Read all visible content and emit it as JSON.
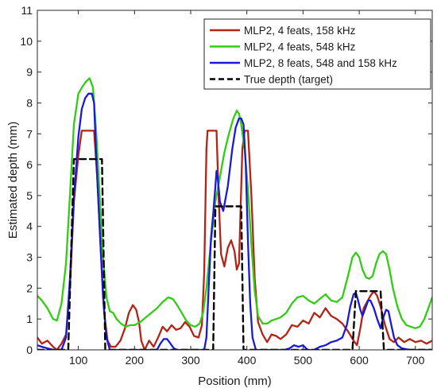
{
  "chart_data": {
    "type": "line",
    "xlabel": "Position (mm)",
    "ylabel": "Estimated depth (mm)",
    "xlim": [
      27,
      730
    ],
    "ylim": [
      0,
      11
    ],
    "x_ticks": [
      100,
      200,
      300,
      400,
      500,
      600,
      700
    ],
    "y_ticks": [
      0,
      1,
      2,
      3,
      4,
      5,
      6,
      7,
      8,
      9,
      10,
      11
    ],
    "grid": false,
    "legend_position": "top-right",
    "series": [
      {
        "name": "MLP2, 4 feats, 158 kHz",
        "color": "#b22418",
        "style": "solid",
        "points": [
          [
            27,
            0.4
          ],
          [
            35,
            0.2
          ],
          [
            45,
            0.3
          ],
          [
            55,
            0.1
          ],
          [
            62,
            0.0
          ],
          [
            70,
            0.2
          ],
          [
            78,
            0.5
          ],
          [
            85,
            2.0
          ],
          [
            92,
            4.8
          ],
          [
            100,
            6.3
          ],
          [
            106,
            7.1
          ],
          [
            112,
            7.1
          ],
          [
            120,
            7.1
          ],
          [
            128,
            7.1
          ],
          [
            134,
            5.5
          ],
          [
            140,
            3.2
          ],
          [
            146,
            1.2
          ],
          [
            152,
            0.3
          ],
          [
            158,
            0.1
          ],
          [
            166,
            0.1
          ],
          [
            175,
            0.3
          ],
          [
            183,
            0.7
          ],
          [
            190,
            1.2
          ],
          [
            197,
            1.45
          ],
          [
            203,
            1.3
          ],
          [
            208,
            0.9
          ],
          [
            212,
            0.3
          ],
          [
            218,
            0.0
          ],
          [
            226,
            0.3
          ],
          [
            234,
            0.1
          ],
          [
            242,
            0.4
          ],
          [
            250,
            0.75
          ],
          [
            258,
            0.6
          ],
          [
            266,
            0.8
          ],
          [
            274,
            0.65
          ],
          [
            282,
            0.7
          ],
          [
            290,
            0.9
          ],
          [
            298,
            0.75
          ],
          [
            306,
            0.45
          ],
          [
            314,
            0.4
          ],
          [
            320,
            0.8
          ],
          [
            324,
            2.5
          ],
          [
            328,
            6.5
          ],
          [
            330,
            7.1
          ],
          [
            340,
            7.1
          ],
          [
            346,
            7.1
          ],
          [
            350,
            4.8
          ],
          [
            354,
            3.1
          ],
          [
            360,
            2.7
          ],
          [
            366,
            3.3
          ],
          [
            372,
            3.55
          ],
          [
            378,
            3.2
          ],
          [
            382,
            2.6
          ],
          [
            386,
            2.8
          ],
          [
            392,
            6.5
          ],
          [
            396,
            7.1
          ],
          [
            402,
            7.1
          ],
          [
            408,
            5.0
          ],
          [
            414,
            2.3
          ],
          [
            420,
            0.9
          ],
          [
            428,
            0.5
          ],
          [
            436,
            0.25
          ],
          [
            444,
            0.5
          ],
          [
            452,
            0.45
          ],
          [
            460,
            0.35
          ],
          [
            470,
            0.5
          ],
          [
            480,
            0.8
          ],
          [
            490,
            0.75
          ],
          [
            500,
            0.95
          ],
          [
            510,
            0.85
          ],
          [
            520,
            1.2
          ],
          [
            530,
            1.05
          ],
          [
            540,
            1.35
          ],
          [
            550,
            1.1
          ],
          [
            560,
            1.0
          ],
          [
            570,
            0.85
          ],
          [
            580,
            0.6
          ],
          [
            590,
            0.3
          ],
          [
            596,
            0.15
          ],
          [
            602,
            0.7
          ],
          [
            608,
            1.35
          ],
          [
            614,
            1.55
          ],
          [
            620,
            1.75
          ],
          [
            626,
            1.9
          ],
          [
            632,
            1.75
          ],
          [
            638,
            1.4
          ],
          [
            646,
            0.8
          ],
          [
            654,
            0.35
          ],
          [
            662,
            0.25
          ],
          [
            670,
            0.4
          ],
          [
            680,
            0.25
          ],
          [
            690,
            0.35
          ],
          [
            700,
            0.25
          ],
          [
            710,
            0.3
          ],
          [
            720,
            0.2
          ],
          [
            730,
            0.3
          ]
        ]
      },
      {
        "name": "MLP2, 4 feats, 548 kHz",
        "color": "#33cc14",
        "style": "solid",
        "points": [
          [
            27,
            1.75
          ],
          [
            35,
            1.6
          ],
          [
            45,
            1.35
          ],
          [
            55,
            1.0
          ],
          [
            62,
            0.95
          ],
          [
            70,
            1.5
          ],
          [
            78,
            2.8
          ],
          [
            85,
            5.0
          ],
          [
            92,
            7.3
          ],
          [
            100,
            8.3
          ],
          [
            108,
            8.55
          ],
          [
            114,
            8.7
          ],
          [
            120,
            8.8
          ],
          [
            126,
            8.5
          ],
          [
            132,
            7.0
          ],
          [
            138,
            5.0
          ],
          [
            144,
            3.0
          ],
          [
            150,
            1.7
          ],
          [
            156,
            1.25
          ],
          [
            162,
            1.2
          ],
          [
            168,
            1.0
          ],
          [
            176,
            0.85
          ],
          [
            184,
            0.75
          ],
          [
            192,
            0.8
          ],
          [
            200,
            0.8
          ],
          [
            210,
            0.9
          ],
          [
            220,
            1.05
          ],
          [
            230,
            1.2
          ],
          [
            240,
            1.35
          ],
          [
            250,
            1.55
          ],
          [
            260,
            1.7
          ],
          [
            268,
            1.65
          ],
          [
            276,
            1.45
          ],
          [
            284,
            1.2
          ],
          [
            292,
            0.95
          ],
          [
            300,
            0.8
          ],
          [
            308,
            0.75
          ],
          [
            316,
            0.85
          ],
          [
            322,
            1.2
          ],
          [
            328,
            2.0
          ],
          [
            336,
            3.5
          ],
          [
            344,
            4.8
          ],
          [
            352,
            5.6
          ],
          [
            360,
            6.4
          ],
          [
            368,
            7.0
          ],
          [
            376,
            7.5
          ],
          [
            382,
            7.75
          ],
          [
            386,
            7.65
          ],
          [
            390,
            7.3
          ],
          [
            396,
            6.5
          ],
          [
            402,
            5.2
          ],
          [
            408,
            3.4
          ],
          [
            414,
            1.9
          ],
          [
            420,
            1.1
          ],
          [
            428,
            0.85
          ],
          [
            436,
            0.85
          ],
          [
            444,
            0.95
          ],
          [
            452,
            1.0
          ],
          [
            460,
            1.05
          ],
          [
            470,
            1.2
          ],
          [
            480,
            1.5
          ],
          [
            490,
            1.7
          ],
          [
            500,
            1.75
          ],
          [
            510,
            1.6
          ],
          [
            520,
            1.5
          ],
          [
            530,
            1.65
          ],
          [
            540,
            1.8
          ],
          [
            550,
            1.6
          ],
          [
            560,
            1.55
          ],
          [
            570,
            1.7
          ],
          [
            580,
            2.4
          ],
          [
            588,
            3.0
          ],
          [
            594,
            3.15
          ],
          [
            600,
            3.0
          ],
          [
            606,
            2.6
          ],
          [
            612,
            2.35
          ],
          [
            618,
            2.3
          ],
          [
            624,
            2.4
          ],
          [
            630,
            2.8
          ],
          [
            636,
            3.1
          ],
          [
            642,
            3.2
          ],
          [
            648,
            3.1
          ],
          [
            654,
            2.6
          ],
          [
            660,
            2.0
          ],
          [
            668,
            1.4
          ],
          [
            676,
            1.0
          ],
          [
            684,
            0.8
          ],
          [
            692,
            0.75
          ],
          [
            700,
            0.7
          ],
          [
            708,
            0.75
          ],
          [
            716,
            1.0
          ],
          [
            724,
            1.4
          ],
          [
            730,
            1.7
          ]
        ]
      },
      {
        "name": "MLP2, 8 feats, 548 and 158 kHz",
        "color": "#1a1ad6",
        "style": "solid",
        "points": [
          [
            27,
            0.15
          ],
          [
            35,
            0.1
          ],
          [
            45,
            0.05
          ],
          [
            55,
            0.0
          ],
          [
            70,
            0.0
          ],
          [
            78,
            0.4
          ],
          [
            85,
            2.3
          ],
          [
            92,
            4.9
          ],
          [
            100,
            6.9
          ],
          [
            106,
            7.8
          ],
          [
            112,
            8.15
          ],
          [
            118,
            8.3
          ],
          [
            124,
            8.3
          ],
          [
            128,
            8.0
          ],
          [
            132,
            6.2
          ],
          [
            138,
            3.9
          ],
          [
            144,
            1.7
          ],
          [
            150,
            0.4
          ],
          [
            156,
            0.0
          ],
          [
            240,
            0.0
          ],
          [
            246,
            0.2
          ],
          [
            252,
            0.35
          ],
          [
            258,
            0.35
          ],
          [
            264,
            0.2
          ],
          [
            270,
            0.05
          ],
          [
            276,
            0.0
          ],
          [
            324,
            0.0
          ],
          [
            328,
            0.4
          ],
          [
            332,
            2.0
          ],
          [
            336,
            3.6
          ],
          [
            340,
            4.4
          ],
          [
            344,
            5.3
          ],
          [
            346,
            5.8
          ],
          [
            348,
            5.6
          ],
          [
            352,
            4.8
          ],
          [
            358,
            4.5
          ],
          [
            366,
            5.3
          ],
          [
            374,
            6.5
          ],
          [
            380,
            7.2
          ],
          [
            386,
            7.5
          ],
          [
            390,
            7.5
          ],
          [
            394,
            7.3
          ],
          [
            398,
            6.0
          ],
          [
            402,
            3.5
          ],
          [
            406,
            1.5
          ],
          [
            410,
            0.4
          ],
          [
            416,
            0.0
          ],
          [
            468,
            0.0
          ],
          [
            476,
            0.05
          ],
          [
            484,
            0.15
          ],
          [
            492,
            0.1
          ],
          [
            500,
            0.15
          ],
          [
            508,
            0.0
          ],
          [
            520,
            0.0
          ],
          [
            530,
            0.1
          ],
          [
            540,
            0.15
          ],
          [
            550,
            0.25
          ],
          [
            560,
            0.3
          ],
          [
            570,
            0.4
          ],
          [
            578,
            0.8
          ],
          [
            584,
            1.4
          ],
          [
            590,
            1.8
          ],
          [
            594,
            1.85
          ],
          [
            598,
            1.6
          ],
          [
            602,
            1.3
          ],
          [
            606,
            1.1
          ],
          [
            610,
            1.3
          ],
          [
            616,
            1.6
          ],
          [
            620,
            1.6
          ],
          [
            626,
            1.35
          ],
          [
            632,
            1.0
          ],
          [
            638,
            0.7
          ],
          [
            642,
            1.0
          ],
          [
            648,
            1.3
          ],
          [
            652,
            1.25
          ],
          [
            656,
            0.9
          ],
          [
            662,
            0.4
          ],
          [
            668,
            0.15
          ],
          [
            676,
            0.05
          ],
          [
            690,
            0.0
          ],
          [
            730,
            0.0
          ]
        ]
      },
      {
        "name": "True depth (target)",
        "color": "#000000",
        "style": "dashed",
        "points": [
          [
            27,
            0.0
          ],
          [
            82,
            0.0
          ],
          [
            92,
            6.18
          ],
          [
            142,
            6.18
          ],
          [
            148,
            0.0
          ],
          [
            340,
            0.0
          ],
          [
            344,
            4.65
          ],
          [
            390,
            4.65
          ],
          [
            394,
            0.0
          ],
          [
            588,
            0.0
          ],
          [
            594,
            1.9
          ],
          [
            638,
            1.9
          ],
          [
            644,
            0.0
          ],
          [
            730,
            0.0
          ]
        ]
      }
    ]
  }
}
